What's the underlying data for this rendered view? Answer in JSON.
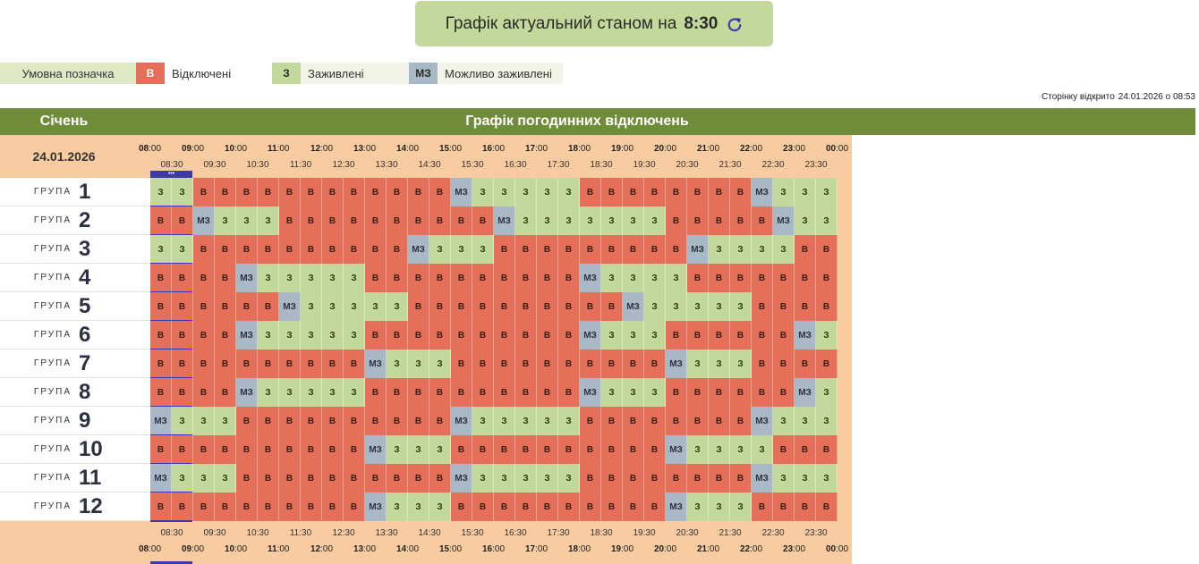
{
  "banner": {
    "text": "Графік актуальний станом на",
    "time": "8:30",
    "refresh_icon": "refresh-icon"
  },
  "legend": {
    "title": "Умовна позначка",
    "off": {
      "code": "В",
      "label": "Відключені",
      "color": "#e5705a"
    },
    "on": {
      "code": "З",
      "label": "Заживлені",
      "color": "#c5d89b"
    },
    "maybe": {
      "code": "МЗ",
      "label": "Можливо заживлені",
      "color": "#a9b8c7"
    }
  },
  "page_opened": {
    "label": "Сторінку відкрито",
    "value": "24.01.2026 о 08:53"
  },
  "header": {
    "month": "Січень",
    "title": "Графік погодинних відключень"
  },
  "date": "24.01.2026",
  "now_marker": "•••",
  "hours": [
    "08",
    "09",
    "10",
    "11",
    "12",
    "13",
    "14",
    "15",
    "16",
    "17",
    "18",
    "19",
    "20",
    "21",
    "22",
    "23",
    "00"
  ],
  "hour_suffix": ":00",
  "half_hours": [
    "08:30",
    "09:30",
    "10:30",
    "11:30",
    "12:30",
    "13:30",
    "14:30",
    "15:30",
    "16:30",
    "17:30",
    "18:30",
    "19:30",
    "20:30",
    "21:30",
    "22:30",
    "23:30"
  ],
  "group_word": "ГРУПА",
  "groups": [
    {
      "num": "1",
      "cells": [
        "З",
        "З",
        "В",
        "В",
        "В",
        "В",
        "В",
        "В",
        "В",
        "В",
        "В",
        "В",
        "В",
        "В",
        "МЗ",
        "З",
        "З",
        "З",
        "З",
        "З",
        "В",
        "В",
        "В",
        "В",
        "В",
        "В",
        "В",
        "В",
        "МЗ",
        "З",
        "З",
        "З"
      ]
    },
    {
      "num": "2",
      "cells": [
        "В",
        "В",
        "МЗ",
        "З",
        "З",
        "З",
        "В",
        "В",
        "В",
        "В",
        "В",
        "В",
        "В",
        "В",
        "В",
        "В",
        "МЗ",
        "З",
        "З",
        "З",
        "З",
        "З",
        "З",
        "З",
        "В",
        "В",
        "В",
        "В",
        "В",
        "МЗ",
        "З",
        "З"
      ]
    },
    {
      "num": "3",
      "cells": [
        "З",
        "З",
        "В",
        "В",
        "В",
        "В",
        "В",
        "В",
        "В",
        "В",
        "В",
        "В",
        "МЗ",
        "З",
        "З",
        "З",
        "В",
        "В",
        "В",
        "В",
        "В",
        "В",
        "В",
        "В",
        "В",
        "МЗ",
        "З",
        "З",
        "З",
        "З",
        "В",
        "В"
      ]
    },
    {
      "num": "4",
      "cells": [
        "В",
        "В",
        "В",
        "В",
        "МЗ",
        "З",
        "З",
        "З",
        "З",
        "З",
        "В",
        "В",
        "В",
        "В",
        "В",
        "В",
        "В",
        "В",
        "В",
        "В",
        "МЗ",
        "З",
        "З",
        "З",
        "З",
        "В",
        "В",
        "В",
        "В",
        "В",
        "В",
        "В"
      ]
    },
    {
      "num": "5",
      "cells": [
        "В",
        "В",
        "В",
        "В",
        "В",
        "В",
        "МЗ",
        "З",
        "З",
        "З",
        "З",
        "З",
        "В",
        "В",
        "В",
        "В",
        "В",
        "В",
        "В",
        "В",
        "В",
        "В",
        "МЗ",
        "З",
        "З",
        "З",
        "З",
        "З",
        "В",
        "В",
        "В",
        "В"
      ]
    },
    {
      "num": "6",
      "cells": [
        "В",
        "В",
        "В",
        "В",
        "МЗ",
        "З",
        "З",
        "З",
        "З",
        "З",
        "В",
        "В",
        "В",
        "В",
        "В",
        "В",
        "В",
        "В",
        "В",
        "В",
        "МЗ",
        "З",
        "З",
        "З",
        "В",
        "В",
        "В",
        "В",
        "В",
        "В",
        "МЗ",
        "З"
      ]
    },
    {
      "num": "7",
      "cells": [
        "В",
        "В",
        "В",
        "В",
        "В",
        "В",
        "В",
        "В",
        "В",
        "В",
        "МЗ",
        "З",
        "З",
        "З",
        "В",
        "В",
        "В",
        "В",
        "В",
        "В",
        "В",
        "В",
        "В",
        "В",
        "МЗ",
        "З",
        "З",
        "З",
        "В",
        "В",
        "В",
        "В"
      ]
    },
    {
      "num": "8",
      "cells": [
        "В",
        "В",
        "В",
        "В",
        "МЗ",
        "З",
        "З",
        "З",
        "З",
        "З",
        "В",
        "В",
        "В",
        "В",
        "В",
        "В",
        "В",
        "В",
        "В",
        "В",
        "МЗ",
        "З",
        "З",
        "З",
        "В",
        "В",
        "В",
        "В",
        "В",
        "В",
        "МЗ",
        "З"
      ]
    },
    {
      "num": "9",
      "cells": [
        "МЗ",
        "З",
        "З",
        "З",
        "В",
        "В",
        "В",
        "В",
        "В",
        "В",
        "В",
        "В",
        "В",
        "В",
        "МЗ",
        "З",
        "З",
        "З",
        "З",
        "З",
        "В",
        "В",
        "В",
        "В",
        "В",
        "В",
        "В",
        "В",
        "МЗ",
        "З",
        "З",
        "З"
      ]
    },
    {
      "num": "10",
      "cells": [
        "В",
        "В",
        "В",
        "В",
        "В",
        "В",
        "В",
        "В",
        "В",
        "В",
        "МЗ",
        "З",
        "З",
        "З",
        "В",
        "В",
        "В",
        "В",
        "В",
        "В",
        "В",
        "В",
        "В",
        "В",
        "МЗ",
        "З",
        "З",
        "З",
        "З",
        "В",
        "В",
        "В"
      ]
    },
    {
      "num": "11",
      "cells": [
        "МЗ",
        "З",
        "З",
        "З",
        "В",
        "В",
        "В",
        "В",
        "В",
        "В",
        "В",
        "В",
        "В",
        "В",
        "МЗ",
        "З",
        "З",
        "З",
        "З",
        "З",
        "В",
        "В",
        "В",
        "В",
        "В",
        "В",
        "В",
        "В",
        "МЗ",
        "З",
        "З",
        "З"
      ]
    },
    {
      "num": "12",
      "cells": [
        "В",
        "В",
        "В",
        "В",
        "В",
        "В",
        "В",
        "В",
        "В",
        "В",
        "МЗ",
        "З",
        "З",
        "З",
        "В",
        "В",
        "В",
        "В",
        "В",
        "В",
        "В",
        "В",
        "В",
        "В",
        "МЗ",
        "З",
        "З",
        "З",
        "В",
        "В",
        "В",
        "В"
      ]
    }
  ]
}
